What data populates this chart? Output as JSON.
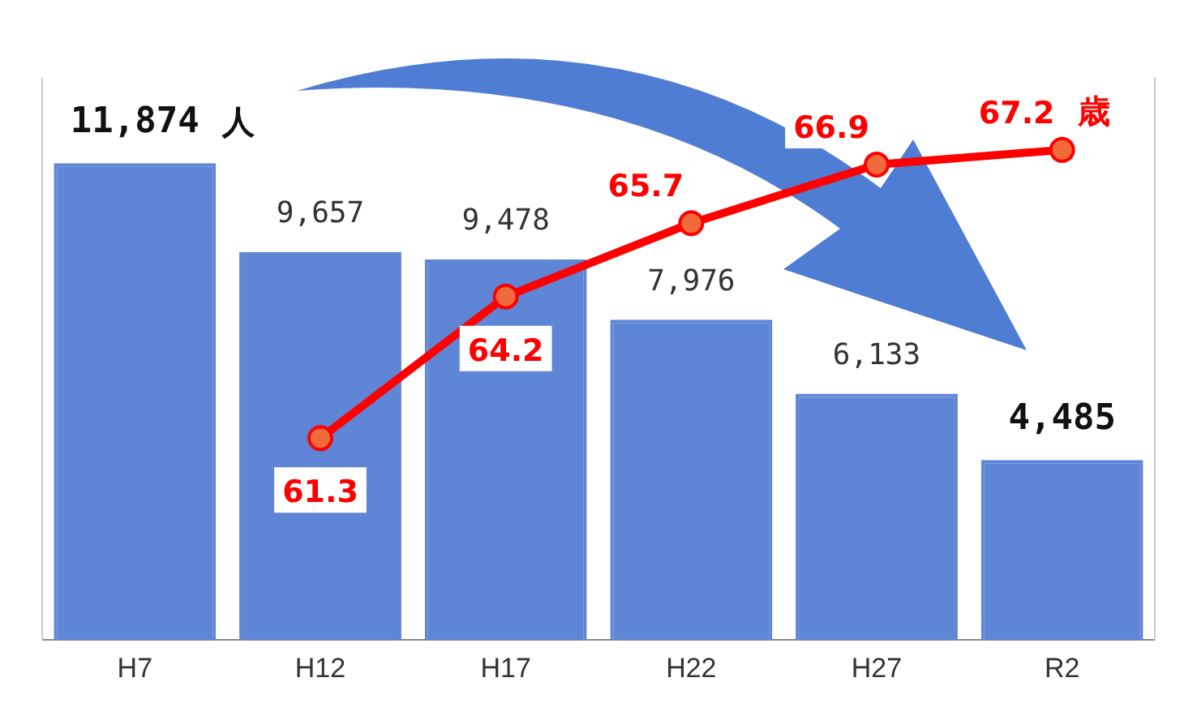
{
  "chart_data": {
    "type": "bar",
    "categories": [
      "H7",
      "H12",
      "H17",
      "H22",
      "H27",
      "R2"
    ],
    "series": [
      {
        "color": "#5f85d6",
        "values": [
          11874,
          9657,
          9478,
          7976,
          6133,
          4485
        ],
        "value_labels": [
          "11,874",
          "9,657",
          "9,478",
          "7,976",
          "6,133",
          "4,485"
        ]
      },
      {
        "type": "line",
        "axis": "y2",
        "color": "#ff0000",
        "values": [
          null,
          61.3,
          64.2,
          65.7,
          66.9,
          67.2
        ],
        "value_labels": [
          null,
          "61.3",
          "64.2",
          "65.7",
          "66.9",
          "67.2"
        ]
      }
    ],
    "annotations": [
      "人",
      "歳"
    ],
    "marker": "circle",
    "line_style": "solid",
    "grid": false,
    "legend": false,
    "tick_labels": "x"
  }
}
